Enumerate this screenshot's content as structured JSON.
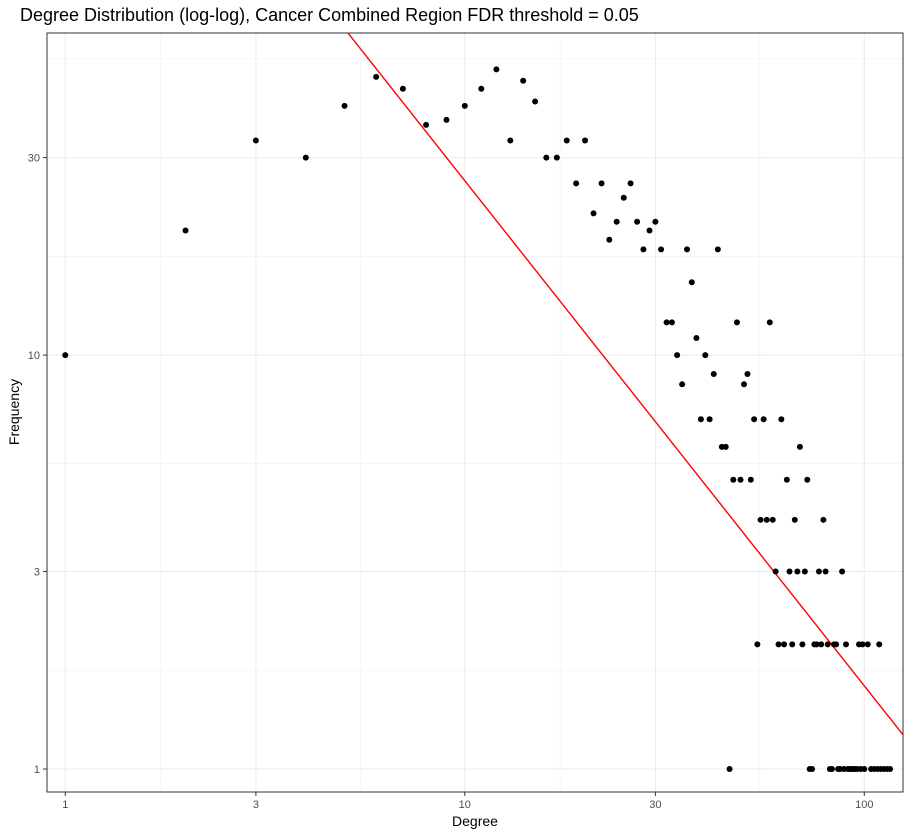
{
  "chart_data": {
    "type": "scatter",
    "title": "Degree Distribution (log-log), Cancer Combined Region FDR threshold = 0.05",
    "xlabel": "Degree",
    "ylabel": "Frequency",
    "x_scale": "log10",
    "y_scale": "log10",
    "xlim": [
      0.9,
      125
    ],
    "ylim": [
      0.88,
      60
    ],
    "x_ticks": [
      1,
      3,
      10,
      30,
      100
    ],
    "x_tick_labels": [
      "1",
      "3",
      "10",
      "30",
      "100"
    ],
    "y_ticks": [
      1,
      3,
      10,
      30
    ],
    "y_tick_labels": [
      "1",
      "3",
      "10",
      "30"
    ],
    "grid": true,
    "colors": {
      "points": "#000000",
      "fit_line": "#ff0000",
      "panel_border": "#333333",
      "grid": "#ebebeb"
    },
    "fit_line": {
      "points": [
        [
          5.1,
          60
        ],
        [
          125,
          1.21
        ]
      ]
    },
    "points": [
      [
        1,
        10
      ],
      [
        2,
        20
      ],
      [
        3,
        33
      ],
      [
        4,
        30
      ],
      [
        5,
        40
      ],
      [
        6,
        47
      ],
      [
        7,
        44
      ],
      [
        8,
        36
      ],
      [
        9,
        37
      ],
      [
        10,
        40
      ],
      [
        11,
        44
      ],
      [
        12,
        49
      ],
      [
        13,
        33
      ],
      [
        14,
        46
      ],
      [
        15,
        41
      ],
      [
        16,
        30
      ],
      [
        17,
        30
      ],
      [
        18,
        33
      ],
      [
        19,
        26
      ],
      [
        20,
        33
      ],
      [
        21,
        22
      ],
      [
        22,
        26
      ],
      [
        23,
        19
      ],
      [
        24,
        21
      ],
      [
        25,
        24
      ],
      [
        26,
        26
      ],
      [
        27,
        21
      ],
      [
        28,
        18
      ],
      [
        29,
        20
      ],
      [
        30,
        21
      ],
      [
        31,
        18
      ],
      [
        32,
        12
      ],
      [
        33,
        12
      ],
      [
        34,
        10
      ],
      [
        35,
        8.5
      ],
      [
        36,
        18
      ],
      [
        37,
        15
      ],
      [
        38,
        11
      ],
      [
        39,
        7
      ],
      [
        40,
        10
      ],
      [
        41,
        7
      ],
      [
        42,
        9
      ],
      [
        43,
        18
      ],
      [
        44,
        6
      ],
      [
        45,
        6
      ],
      [
        46,
        1
      ],
      [
        47,
        5
      ],
      [
        48,
        12
      ],
      [
        49,
        5
      ],
      [
        50,
        8.5
      ],
      [
        51,
        9
      ],
      [
        52,
        5
      ],
      [
        53,
        7
      ],
      [
        54,
        2
      ],
      [
        55,
        4
      ],
      [
        56,
        7
      ],
      [
        57,
        4
      ],
      [
        58,
        12
      ],
      [
        59,
        4
      ],
      [
        60,
        3
      ],
      [
        61,
        2
      ],
      [
        62,
        7
      ],
      [
        63,
        2
      ],
      [
        64,
        5
      ],
      [
        65,
        3
      ],
      [
        66,
        2
      ],
      [
        67,
        4
      ],
      [
        68,
        3
      ],
      [
        69,
        6
      ],
      [
        70,
        2
      ],
      [
        71,
        3
      ],
      [
        72,
        5
      ],
      [
        73,
        1
      ],
      [
        74,
        1
      ],
      [
        75,
        2
      ],
      [
        76,
        2
      ],
      [
        77,
        3
      ],
      [
        78,
        2
      ],
      [
        79,
        4
      ],
      [
        80,
        3
      ],
      [
        81,
        2
      ],
      [
        82,
        1
      ],
      [
        83,
        1
      ],
      [
        84,
        2
      ],
      [
        85,
        2
      ],
      [
        86,
        1
      ],
      [
        87,
        1
      ],
      [
        88,
        3
      ],
      [
        89,
        1
      ],
      [
        90,
        2
      ],
      [
        91,
        1
      ],
      [
        92,
        1
      ],
      [
        93,
        1
      ],
      [
        94,
        1
      ],
      [
        95,
        1
      ],
      [
        96,
        1
      ],
      [
        97,
        2
      ],
      [
        98,
        1
      ],
      [
        99,
        2
      ],
      [
        100,
        1
      ],
      [
        102,
        2
      ],
      [
        104,
        1
      ],
      [
        106,
        1
      ],
      [
        108,
        1
      ],
      [
        109,
        2
      ],
      [
        110,
        1
      ],
      [
        112,
        1
      ],
      [
        114,
        1
      ],
      [
        116,
        1
      ]
    ]
  }
}
